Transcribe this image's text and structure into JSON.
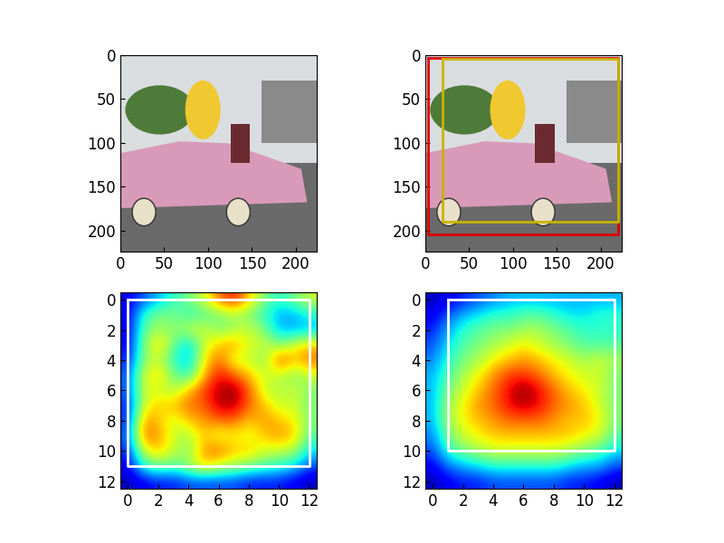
{
  "chart_data": [
    {
      "type": "image",
      "xlim": [
        0,
        224
      ],
      "ylim": [
        224,
        0
      ],
      "xticks": [
        0,
        50,
        100,
        150,
        200
      ],
      "yticks": [
        0,
        50,
        100,
        150,
        200
      ],
      "boxes": []
    },
    {
      "type": "image",
      "xlim": [
        0,
        224
      ],
      "ylim": [
        224,
        0
      ],
      "xticks": [
        0,
        50,
        100,
        150,
        200
      ],
      "yticks": [
        0,
        50,
        100,
        150,
        200
      ],
      "boxes": [
        {
          "color": "#e00000",
          "x0": 3,
          "y0": 3,
          "x1": 220,
          "y1": 205
        },
        {
          "color": "#c8b400",
          "x0": 20,
          "y0": 5,
          "x1": 220,
          "y1": 190
        }
      ]
    },
    {
      "type": "heatmap",
      "xlim": [
        -0.5,
        12.5
      ],
      "ylim": [
        12.5,
        -0.5
      ],
      "xticks": [
        0,
        2,
        4,
        6,
        8,
        10,
        12
      ],
      "yticks": [
        0,
        2,
        4,
        6,
        8,
        10,
        12
      ],
      "color_range": [
        0,
        1
      ],
      "boxes": [
        {
          "color": "#ffffff",
          "x0": 0,
          "y0": 0,
          "x1": 12,
          "y1": 11
        }
      ],
      "cells": [
        [
          0.1,
          0.2,
          0.3,
          0.4,
          0.5,
          0.6,
          0.8,
          0.9,
          0.7,
          0.5,
          0.4,
          0.5,
          0.6
        ],
        [
          0.1,
          0.4,
          0.5,
          0.5,
          0.4,
          0.45,
          0.5,
          0.55,
          0.5,
          0.4,
          0.3,
          0.3,
          0.4
        ],
        [
          0.1,
          0.45,
          0.55,
          0.5,
          0.6,
          0.6,
          0.5,
          0.55,
          0.6,
          0.5,
          0.3,
          0.3,
          0.3
        ],
        [
          0.1,
          0.5,
          0.7,
          0.5,
          0.3,
          0.6,
          0.7,
          0.75,
          0.6,
          0.6,
          0.5,
          0.6,
          0.7
        ],
        [
          0.15,
          0.5,
          0.6,
          0.4,
          0.3,
          0.65,
          0.8,
          0.6,
          0.6,
          0.5,
          0.85,
          0.7,
          0.8
        ],
        [
          0.2,
          0.6,
          0.7,
          0.5,
          0.4,
          0.7,
          0.9,
          0.8,
          0.7,
          0.6,
          0.6,
          0.5,
          0.6
        ],
        [
          0.2,
          0.6,
          0.6,
          0.55,
          0.7,
          0.85,
          0.95,
          1.0,
          0.8,
          0.6,
          0.55,
          0.6,
          0.5
        ],
        [
          0.15,
          0.6,
          0.7,
          0.7,
          0.8,
          0.8,
          0.95,
          0.95,
          0.8,
          0.7,
          0.6,
          0.6,
          0.5
        ],
        [
          0.15,
          0.75,
          0.7,
          0.6,
          0.7,
          0.75,
          0.8,
          0.8,
          0.7,
          0.75,
          0.7,
          0.65,
          0.5
        ],
        [
          0.2,
          0.8,
          0.75,
          0.6,
          0.55,
          0.7,
          0.6,
          0.65,
          0.6,
          0.7,
          0.75,
          0.7,
          0.45
        ],
        [
          0.15,
          0.6,
          0.7,
          0.6,
          0.5,
          0.75,
          0.8,
          0.7,
          0.7,
          0.6,
          0.6,
          0.55,
          0.35
        ],
        [
          0.1,
          0.4,
          0.5,
          0.45,
          0.55,
          0.7,
          0.6,
          0.55,
          0.5,
          0.45,
          0.4,
          0.35,
          0.2
        ],
        [
          0.05,
          0.1,
          0.15,
          0.15,
          0.2,
          0.2,
          0.2,
          0.2,
          0.15,
          0.15,
          0.15,
          0.1,
          0.05
        ]
      ]
    },
    {
      "type": "heatmap",
      "xlim": [
        -0.5,
        12.5
      ],
      "ylim": [
        12.5,
        -0.5
      ],
      "xticks": [
        0,
        2,
        4,
        6,
        8,
        10,
        12
      ],
      "yticks": [
        0,
        2,
        4,
        6,
        8,
        10,
        12
      ],
      "color_range": [
        0,
        1
      ],
      "boxes": [
        {
          "color": "#ffffff",
          "x0": 1,
          "y0": 0,
          "x1": 12,
          "y1": 10
        }
      ],
      "cells": [
        [
          0.05,
          0.1,
          0.15,
          0.2,
          0.25,
          0.3,
          0.3,
          0.3,
          0.3,
          0.3,
          0.3,
          0.3,
          0.3
        ],
        [
          0.1,
          0.2,
          0.3,
          0.35,
          0.4,
          0.4,
          0.45,
          0.45,
          0.4,
          0.35,
          0.35,
          0.4,
          0.4
        ],
        [
          0.15,
          0.3,
          0.4,
          0.45,
          0.5,
          0.5,
          0.55,
          0.55,
          0.5,
          0.45,
          0.4,
          0.4,
          0.4
        ],
        [
          0.2,
          0.35,
          0.45,
          0.5,
          0.55,
          0.6,
          0.65,
          0.6,
          0.55,
          0.5,
          0.45,
          0.45,
          0.45
        ],
        [
          0.25,
          0.4,
          0.5,
          0.55,
          0.65,
          0.7,
          0.75,
          0.7,
          0.65,
          0.6,
          0.55,
          0.6,
          0.55
        ],
        [
          0.3,
          0.45,
          0.55,
          0.65,
          0.75,
          0.85,
          0.85,
          0.8,
          0.7,
          0.65,
          0.6,
          0.6,
          0.5
        ],
        [
          0.3,
          0.5,
          0.6,
          0.7,
          0.8,
          0.9,
          1.0,
          0.9,
          0.8,
          0.7,
          0.65,
          0.6,
          0.5
        ],
        [
          0.3,
          0.55,
          0.65,
          0.75,
          0.8,
          0.9,
          0.95,
          0.9,
          0.8,
          0.75,
          0.7,
          0.6,
          0.5
        ],
        [
          0.3,
          0.55,
          0.65,
          0.7,
          0.75,
          0.8,
          0.8,
          0.8,
          0.75,
          0.7,
          0.7,
          0.65,
          0.5
        ],
        [
          0.25,
          0.5,
          0.6,
          0.65,
          0.7,
          0.7,
          0.7,
          0.7,
          0.7,
          0.7,
          0.65,
          0.6,
          0.45
        ],
        [
          0.2,
          0.4,
          0.5,
          0.55,
          0.6,
          0.6,
          0.6,
          0.6,
          0.6,
          0.55,
          0.5,
          0.45,
          0.35
        ],
        [
          0.1,
          0.25,
          0.3,
          0.35,
          0.4,
          0.4,
          0.4,
          0.4,
          0.4,
          0.35,
          0.3,
          0.3,
          0.2
        ],
        [
          0.05,
          0.1,
          0.15,
          0.15,
          0.2,
          0.2,
          0.2,
          0.2,
          0.2,
          0.15,
          0.15,
          0.1,
          0.05
        ]
      ]
    }
  ]
}
